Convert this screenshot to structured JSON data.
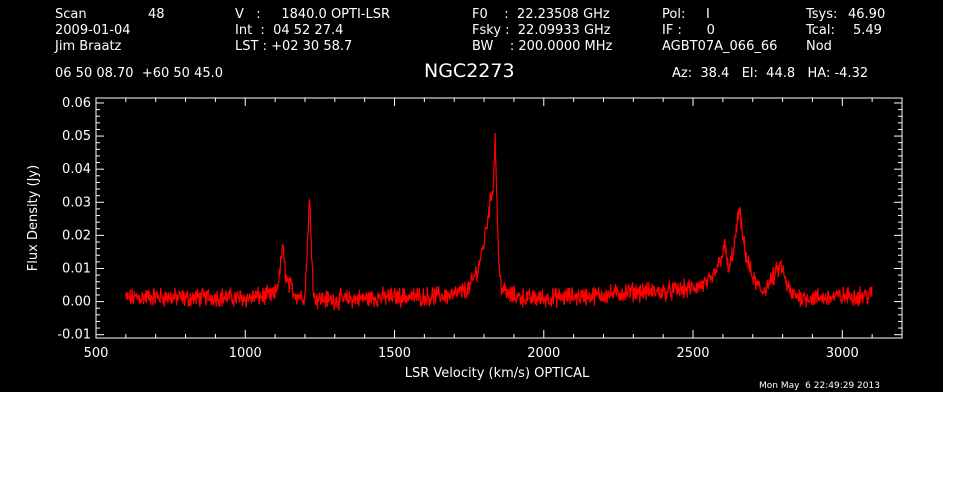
{
  "header": {
    "scan_label": "Scan",
    "scan_value": "48",
    "date": "2009-01-04",
    "observer": "Jim Braatz",
    "v_line": "V   :     1840.0 OPTI-LSR",
    "int_line": "Int  :  04 52 27.4",
    "lst_line": "LST : +02 30 58.7",
    "f0_line": "F0    :  22.23508 GHz",
    "fsky_line": "Fsky :  22.09933 GHz",
    "bw_line": "BW    : 200.0000 MHz",
    "pol_line": "Pol:     I",
    "if_line": "IF :      0",
    "project": "AGBT07A_066_66",
    "tsys_label": "Tsys:",
    "tsys_value": "46.90",
    "tcal_label": "Tcal:",
    "tcal_value": "5.49",
    "mode": "Nod",
    "coords": "06 50 08.70  +60 50 45.0",
    "az_el_ha": "Az:  38.4   El:  44.8   HA: -4.32"
  },
  "footer": {
    "timestamp": "Mon May  6 22:49:29 2013"
  },
  "colors": {
    "background": "#000000",
    "axes": "#ffffff",
    "trace": "#ff0000"
  },
  "chart_data": {
    "type": "line",
    "title": "NGC2273",
    "xlabel": "LSR Velocity (km/s) OPTICAL",
    "ylabel": "Flux Density (Jy)",
    "xlim": [
      500,
      3200
    ],
    "ylim": [
      -0.011,
      0.0615
    ],
    "xticks": [
      500,
      1000,
      1500,
      2000,
      2500,
      3000
    ],
    "xtick_labels": [
      "500",
      "1000",
      "1500",
      "2000",
      "2500",
      "3000"
    ],
    "yticks": [
      -0.01,
      0.0,
      0.01,
      0.02,
      0.03,
      0.04,
      0.05,
      0.06
    ],
    "ytick_labels": [
      "-0.01",
      "0.00",
      "0.01",
      "0.02",
      "0.03",
      "0.04",
      "0.05",
      "0.06"
    ],
    "grid": false,
    "series": [
      {
        "x": [
          600,
          700,
          800,
          900,
          1000,
          1050,
          1100,
          1115,
          1125,
          1130,
          1140,
          1155,
          1170,
          1200,
          1215,
          1230,
          1300,
          1400,
          1500,
          1600,
          1700,
          1750,
          1780,
          1800,
          1815,
          1825,
          1832,
          1837,
          1840,
          1845,
          1850,
          1860,
          1880,
          1950,
          2000,
          2100,
          2200,
          2300,
          2400,
          2500,
          2560,
          2590,
          2605,
          2620,
          2640,
          2655,
          2665,
          2680,
          2700,
          2730,
          2760,
          2780,
          2795,
          2810,
          2830,
          2900,
          3000,
          3100
        ],
        "y": [
          0.001,
          0.0015,
          0.001,
          0.0015,
          0.001,
          0.0015,
          0.002,
          0.008,
          0.017,
          0.012,
          0.006,
          0.004,
          0.002,
          0.0015,
          0.031,
          0.001,
          0.0005,
          0.001,
          0.0015,
          0.0015,
          0.002,
          0.004,
          0.01,
          0.018,
          0.027,
          0.032,
          0.037,
          0.05,
          0.041,
          0.024,
          0.01,
          0.004,
          0.002,
          0.001,
          0.001,
          0.0015,
          0.002,
          0.003,
          0.003,
          0.004,
          0.006,
          0.012,
          0.017,
          0.009,
          0.018,
          0.028,
          0.02,
          0.013,
          0.007,
          0.003,
          0.006,
          0.009,
          0.011,
          0.006,
          0.002,
          0.001,
          0.0015,
          0.002
        ]
      }
    ]
  }
}
